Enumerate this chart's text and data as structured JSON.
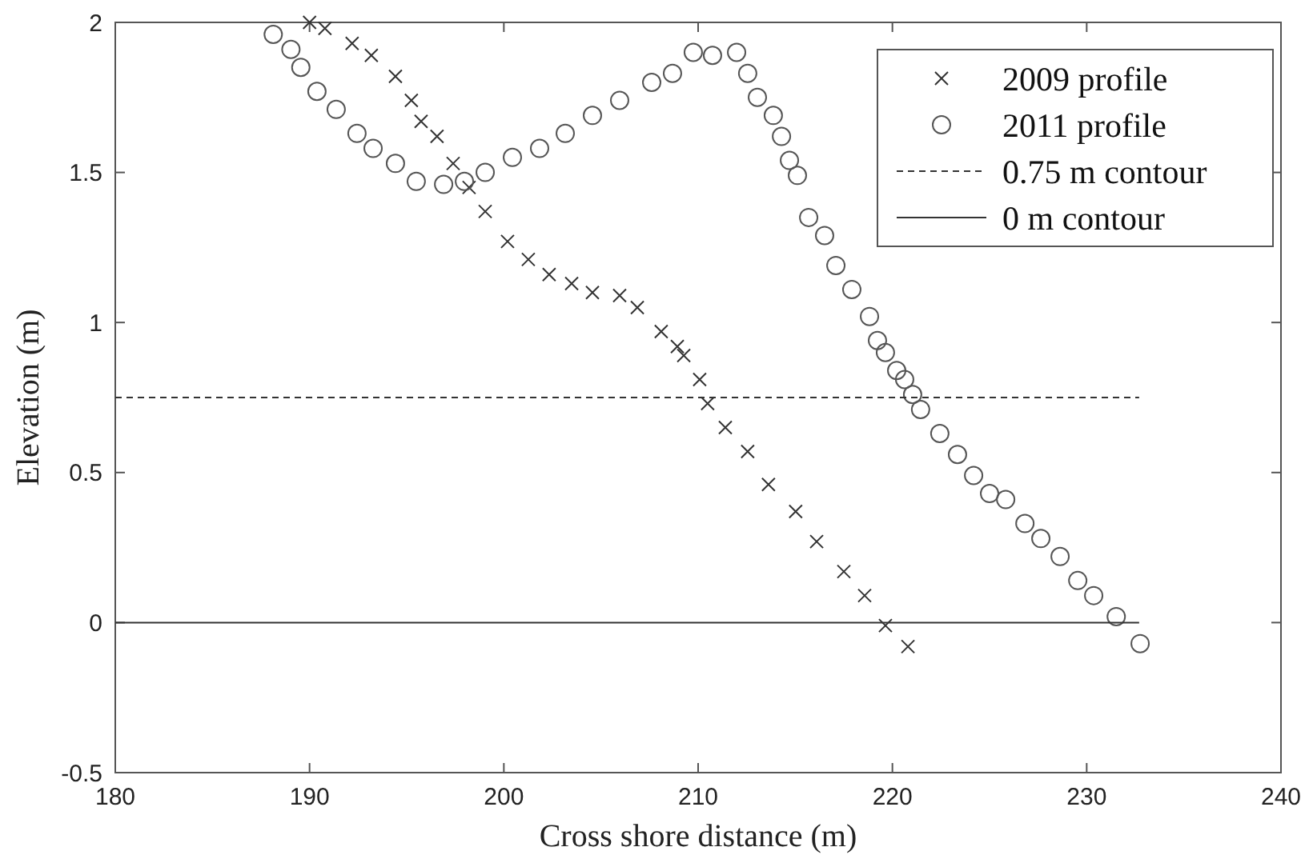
{
  "chart_data": {
    "type": "scatter",
    "xlabel": "Cross shore distance (m)",
    "ylabel": "Elevation (m)",
    "xlim": [
      180,
      240
    ],
    "xticks": [
      180,
      190,
      200,
      210,
      220,
      230,
      240
    ],
    "ylim": [
      -0.5,
      2
    ],
    "yticks": [
      -0.5,
      0,
      0.5,
      1,
      1.5,
      2
    ],
    "grid": false,
    "legend": "top right",
    "series": [
      {
        "name": "2009 profile",
        "marker": "cross",
        "color": "#333333",
        "x": [
          190.0,
          190.79,
          192.19,
          193.18,
          194.42,
          195.24,
          195.74,
          196.56,
          197.39,
          198.21,
          199.04,
          200.19,
          201.26,
          202.33,
          203.49,
          204.56,
          205.96,
          206.87,
          208.1,
          208.93,
          209.26,
          210.08,
          210.49,
          211.4,
          212.55,
          213.62,
          215.02,
          216.1,
          217.5,
          218.57,
          219.64,
          220.8
        ],
        "values": [
          2.0,
          1.98,
          1.93,
          1.89,
          1.82,
          1.74,
          1.67,
          1.62,
          1.53,
          1.45,
          1.37,
          1.27,
          1.21,
          1.16,
          1.13,
          1.1,
          1.09,
          1.05,
          0.97,
          0.92,
          0.89,
          0.81,
          0.73,
          0.65,
          0.57,
          0.46,
          0.37,
          0.27,
          0.17,
          0.09,
          -0.01,
          -0.08
        ]
      },
      {
        "name": "2011 profile",
        "marker": "circle",
        "color": "#555555",
        "x": [
          188.13,
          189.04,
          189.55,
          190.38,
          191.37,
          192.44,
          193.27,
          194.42,
          195.49,
          196.9,
          197.97,
          199.04,
          200.44,
          201.84,
          203.16,
          204.56,
          205.96,
          207.61,
          208.68,
          209.75,
          210.74,
          211.98,
          212.55,
          213.05,
          213.87,
          214.29,
          214.7,
          215.11,
          215.69,
          216.51,
          217.09,
          217.91,
          218.82,
          219.23,
          219.64,
          220.22,
          220.63,
          221.04,
          221.45,
          222.44,
          223.35,
          224.18,
          225.0,
          225.83,
          226.82,
          227.64,
          228.63,
          229.54,
          230.36,
          231.52,
          232.75
        ],
        "values": [
          1.96,
          1.91,
          1.85,
          1.77,
          1.71,
          1.63,
          1.58,
          1.53,
          1.47,
          1.46,
          1.47,
          1.5,
          1.55,
          1.58,
          1.63,
          1.69,
          1.74,
          1.8,
          1.83,
          1.9,
          1.89,
          1.9,
          1.83,
          1.75,
          1.69,
          1.62,
          1.54,
          1.49,
          1.35,
          1.29,
          1.19,
          1.11,
          1.02,
          0.94,
          0.9,
          0.84,
          0.81,
          0.76,
          0.71,
          0.63,
          0.56,
          0.49,
          0.43,
          0.41,
          0.33,
          0.28,
          0.22,
          0.14,
          0.09,
          0.02,
          -0.07
        ]
      },
      {
        "name": "0.75 m contour",
        "type": "line",
        "line_style": "dashed",
        "color": "#333333",
        "x": [
          180,
          232.7
        ],
        "values": [
          0.75,
          0.75
        ]
      },
      {
        "name": "0 m contour",
        "type": "line",
        "line_style": "solid",
        "color": "#333333",
        "x": [
          180,
          232.7
        ],
        "values": [
          0,
          0
        ]
      }
    ]
  }
}
